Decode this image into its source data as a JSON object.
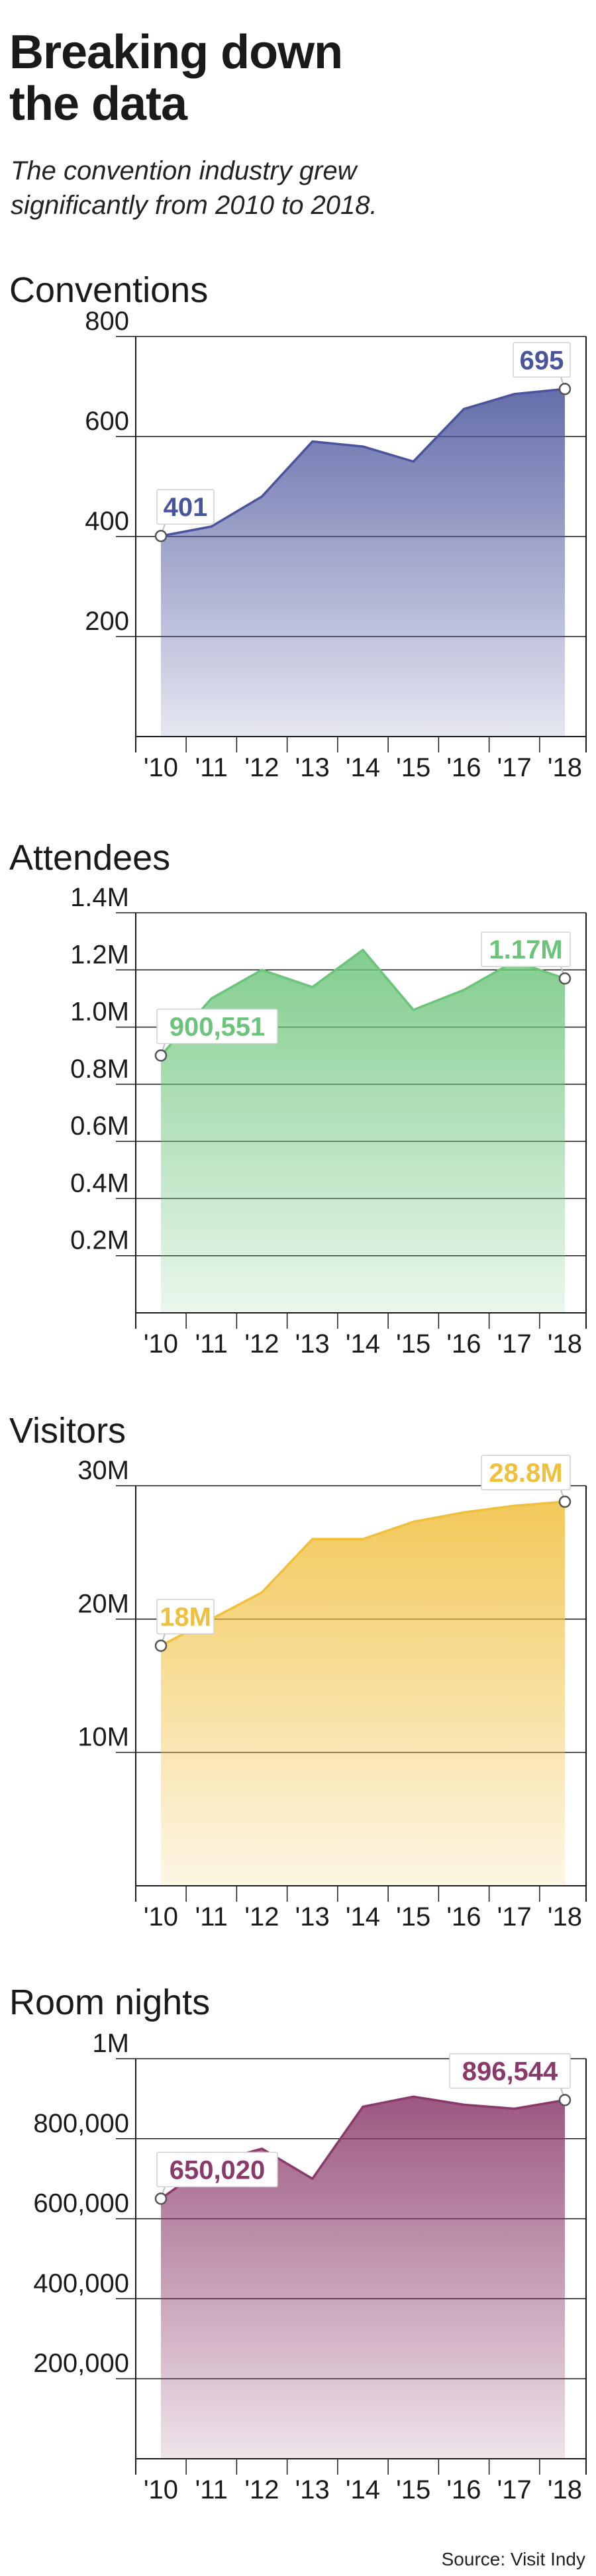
{
  "title_line1": "Breaking down",
  "title_line2": "the data",
  "subtitle_line1": "The convention industry grew",
  "subtitle_line2": "significantly from 2010 to 2018.",
  "source": "Source: Visit Indy",
  "colors": {
    "conventions": "#4a549c",
    "attendees": "#6cc47a",
    "visitors": "#f0bf3c",
    "room_nights": "#8a3a6a"
  },
  "chart_data": [
    {
      "type": "area",
      "title": "Conventions",
      "color": "#4a549c",
      "x": [
        "'10",
        "'11",
        "'12",
        "'13",
        "'14",
        "'15",
        "'16",
        "'17",
        "'18"
      ],
      "values": [
        401,
        420,
        480,
        590,
        580,
        550,
        655,
        685,
        695
      ],
      "ylim": [
        0,
        800
      ],
      "yticks": [
        200,
        400,
        600,
        800
      ],
      "ytick_labels": [
        "200",
        "400",
        "600",
        "800"
      ],
      "grid": true,
      "annotations": [
        {
          "x": "'10",
          "value": 401,
          "label": "401"
        },
        {
          "x": "'18",
          "value": 695,
          "label": "695"
        }
      ]
    },
    {
      "type": "area",
      "title": "Attendees",
      "color": "#6cc47a",
      "x": [
        "'10",
        "'11",
        "'12",
        "'13",
        "'14",
        "'15",
        "'16",
        "'17",
        "'18"
      ],
      "values": [
        900551,
        1100000,
        1200000,
        1140000,
        1270000,
        1060000,
        1130000,
        1230000,
        1170000
      ],
      "ylim": [
        0,
        1400000
      ],
      "yticks": [
        200000,
        400000,
        600000,
        800000,
        1000000,
        1200000,
        1400000
      ],
      "ytick_labels": [
        "0.2M",
        "0.4M",
        "0.6M",
        "0.8M",
        "1.0M",
        "1.2M",
        "1.4M"
      ],
      "grid": true,
      "annotations": [
        {
          "x": "'10",
          "value": 900551,
          "label": "900,551"
        },
        {
          "x": "'18",
          "value": 1170000,
          "label": "1.17M"
        }
      ]
    },
    {
      "type": "area",
      "title": "Visitors",
      "color": "#f0bf3c",
      "x": [
        "'10",
        "'11",
        "'12",
        "'13",
        "'14",
        "'15",
        "'16",
        "'17",
        "'18"
      ],
      "values": [
        18000000,
        20000000,
        22000000,
        26000000,
        26000000,
        27300000,
        28000000,
        28500000,
        28800000
      ],
      "ylim": [
        0,
        30000000
      ],
      "yticks": [
        10000000,
        20000000,
        30000000
      ],
      "ytick_labels": [
        "10M",
        "20M",
        "30M"
      ],
      "grid": true,
      "annotations": [
        {
          "x": "'10",
          "value": 18000000,
          "label": "18M"
        },
        {
          "x": "'18",
          "value": 28800000,
          "label": "28.8M"
        }
      ]
    },
    {
      "type": "area",
      "title": "Room nights",
      "color": "#8a3a6a",
      "x": [
        "'10",
        "'11",
        "'12",
        "'13",
        "'14",
        "'15",
        "'16",
        "'17",
        "'18"
      ],
      "values": [
        650020,
        740000,
        775000,
        700000,
        880000,
        905000,
        885000,
        875000,
        896544
      ],
      "ylim": [
        0,
        1000000
      ],
      "yticks": [
        200000,
        400000,
        600000,
        800000,
        1000000
      ],
      "ytick_labels": [
        "200,000",
        "400,000",
        "600,000",
        "800,000",
        "1M"
      ],
      "grid": true,
      "annotations": [
        {
          "x": "'10",
          "value": 650020,
          "label": "650,020"
        },
        {
          "x": "'18",
          "value": 896544,
          "label": "896,544"
        }
      ]
    }
  ]
}
